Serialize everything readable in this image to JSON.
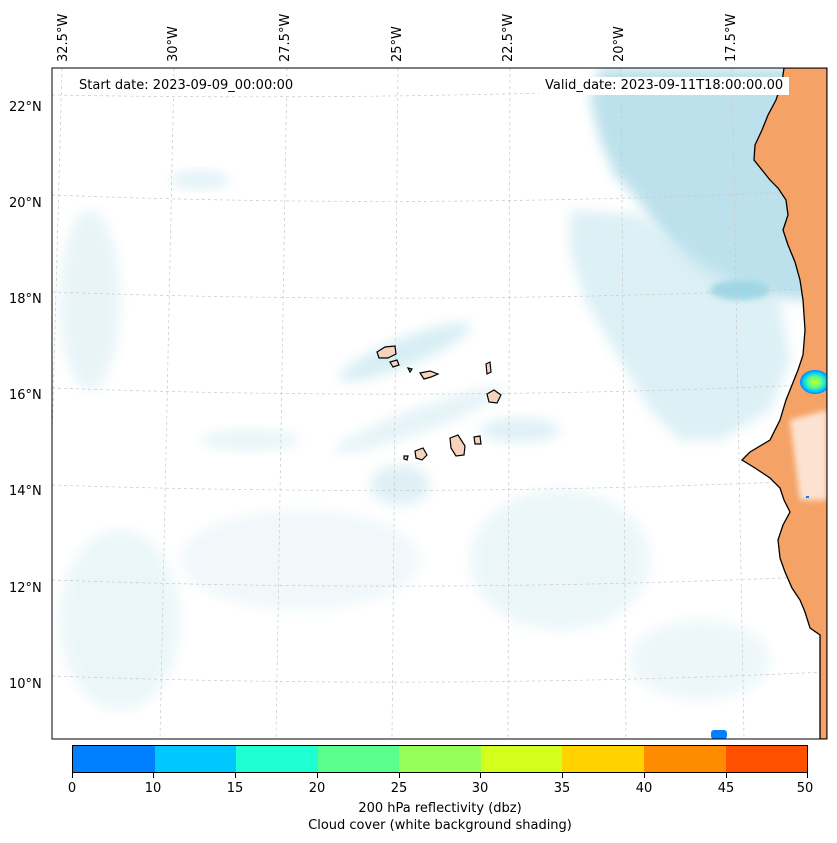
{
  "header": {
    "start_date": "Start date: 2023-09-09_00:00:00",
    "valid_date": "Valid_date: 2023-09-11T18:00:00.00"
  },
  "map": {
    "region": "Cabo Verde and West African coast",
    "lon_labels": [
      "32.5°W",
      "30°W",
      "27.5°W",
      "25°W",
      "22.5°W",
      "20°W",
      "17.5°W"
    ],
    "lat_labels": [
      "22°N",
      "20°N",
      "18°N",
      "16°N",
      "14°N",
      "12°N",
      "10°N"
    ],
    "land_color": "#f5a266",
    "cloud_color": "#a8d8e6",
    "coastline_color": "#000000"
  },
  "colorbar": {
    "label": "200 hPa reflectivity (dbz)",
    "sublabel": "Cloud cover (white background shading)",
    "ticks": [
      "0",
      "10",
      "15",
      "20",
      "25",
      "30",
      "35",
      "40",
      "45",
      "50"
    ],
    "colors": [
      "#0080ff",
      "#00c8ff",
      "#1effd2",
      "#5aff8c",
      "#96ff5a",
      "#d2ff1e",
      "#ffd200",
      "#ff8c00",
      "#ff5000"
    ]
  }
}
